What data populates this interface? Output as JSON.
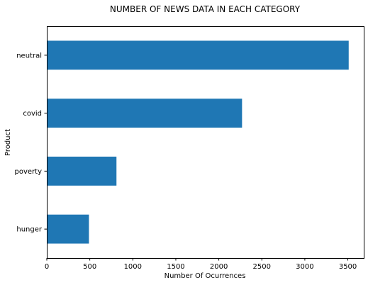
{
  "chart_data": {
    "type": "bar",
    "orientation": "horizontal",
    "title": "NUMBER OF NEWS DATA IN EACH CATEGORY",
    "xlabel": "Number Of Ocurrences",
    "ylabel": "Product",
    "categories": [
      "neutral",
      "covid",
      "poverty",
      "hunger"
    ],
    "values": [
      3510,
      2270,
      810,
      490
    ],
    "xlim": [
      0,
      3685
    ],
    "xticks": [
      0,
      500,
      1000,
      1500,
      2000,
      2500,
      3000,
      3500
    ],
    "grid": false,
    "bar_color": "#1f77b4"
  }
}
